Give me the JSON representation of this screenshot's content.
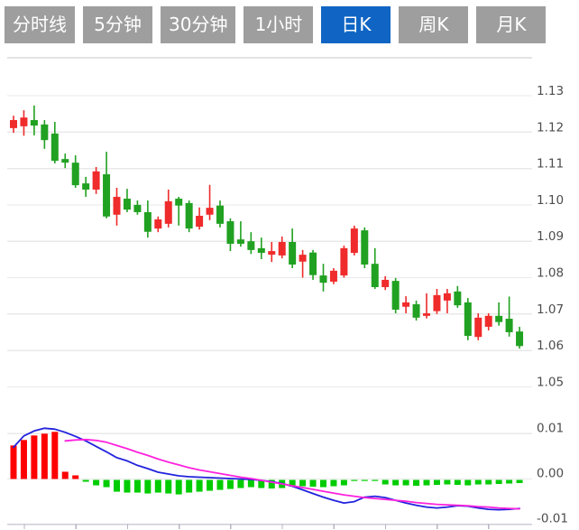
{
  "tabbar": {
    "tabs": [
      {
        "label": "分时线",
        "active": false
      },
      {
        "label": "5分钟",
        "active": false
      },
      {
        "label": "30分钟",
        "active": false
      },
      {
        "label": "1小时",
        "active": false
      },
      {
        "label": "日K",
        "active": true
      },
      {
        "label": "周K",
        "active": false
      },
      {
        "label": "月K",
        "active": false
      }
    ],
    "active_tab": "日K"
  },
  "colors": {
    "tab_bg": "#9e9e9e",
    "tab_active_bg": "#1065c4",
    "tab_text": "#ffffff",
    "grid": "#e9e9e9",
    "top_border": "#e3e3e3",
    "axis_line": "#cdcdd8",
    "axis_tick": "#b5b5c5",
    "axis_text": "#4d4d4d",
    "candle_up": "#ef2b2b",
    "candle_down": "#21a121",
    "hist_up": "#ff0000",
    "hist_down": "#00cc00",
    "dif_line": "#2222dd",
    "dea_line": "#ff22dd"
  },
  "chart_data": {
    "type": "candlestick",
    "title": "",
    "xlabel": "",
    "ylabel": "",
    "convention": "CN colors: red = up candle, green = down candle",
    "price_panel": {
      "y_ticks": [
        1.13,
        1.12,
        1.11,
        1.1,
        1.09,
        1.08,
        1.07,
        1.06,
        1.05
      ],
      "ylim": [
        1.045,
        1.141
      ],
      "grid": "horizontal-only",
      "legend": "none",
      "ohlc_order": [
        "open",
        "high",
        "low",
        "close"
      ],
      "candles": [
        [
          1.1211,
          1.1245,
          1.1198,
          1.1233
        ],
        [
          1.1216,
          1.126,
          1.119,
          1.124
        ],
        [
          1.1233,
          1.1273,
          1.1191,
          1.1218
        ],
        [
          1.1221,
          1.1233,
          1.1154,
          1.1178
        ],
        [
          1.1196,
          1.1228,
          1.1114,
          1.1121
        ],
        [
          1.1126,
          1.1141,
          1.1101,
          1.1116
        ],
        [
          1.1116,
          1.1136,
          1.1047,
          1.1054
        ],
        [
          1.1059,
          1.1077,
          1.1022,
          1.1042
        ],
        [
          1.1042,
          1.1104,
          1.103,
          1.1092
        ],
        [
          1.1084,
          1.1146,
          1.0963,
          1.0968
        ],
        [
          1.0973,
          1.1047,
          1.0943,
          1.1022
        ],
        [
          1.1017,
          1.1044,
          1.098,
          1.0987
        ],
        [
          1.1,
          1.1012,
          1.0973,
          1.098
        ],
        [
          1.098,
          1.1012,
          1.091,
          1.0926
        ],
        [
          1.0935,
          1.0968,
          1.0925,
          1.096
        ],
        [
          1.0948,
          1.1042,
          1.0938,
          1.101
        ],
        [
          1.1017,
          1.1022,
          1.0943,
          1.0998
        ],
        [
          1.1005,
          1.1012,
          1.0925,
          1.0935
        ],
        [
          1.094,
          1.0993,
          1.0932,
          1.097
        ],
        [
          1.0973,
          1.1055,
          1.0958,
          1.0992
        ],
        [
          1.0998,
          1.1012,
          1.0938,
          1.0948
        ],
        [
          1.0955,
          1.0963,
          1.0873,
          1.0893
        ],
        [
          1.0905,
          1.0955,
          1.0885,
          1.0893
        ],
        [
          1.09,
          1.0925,
          1.0865,
          1.0876
        ],
        [
          1.0881,
          1.091,
          1.0851,
          1.0868
        ],
        [
          1.0863,
          1.0898,
          1.0843,
          1.0873
        ],
        [
          1.0861,
          1.0913,
          1.0853,
          1.0898
        ],
        [
          1.0898,
          1.0935,
          1.0826,
          1.0836
        ],
        [
          1.0844,
          1.0876,
          1.08,
          1.0863
        ],
        [
          1.0869,
          1.0876,
          1.0794,
          1.0807
        ],
        [
          1.0806,
          1.0838,
          1.0762,
          1.0786
        ],
        [
          1.0789,
          1.0826,
          1.0782,
          1.0819
        ],
        [
          1.0806,
          1.0888,
          1.08,
          1.0881
        ],
        [
          1.0868,
          1.0943,
          1.0861,
          1.0935
        ],
        [
          1.093,
          1.0938,
          1.0826,
          1.0836
        ],
        [
          1.0838,
          1.0881,
          1.0769,
          1.0774
        ],
        [
          1.0774,
          1.0804,
          1.0766,
          1.0794
        ],
        [
          1.0791,
          1.0799,
          1.0702,
          1.0712
        ],
        [
          1.072,
          1.0749,
          1.0702,
          1.0732
        ],
        [
          1.0727,
          1.0737,
          1.0682,
          1.069
        ],
        [
          1.0695,
          1.0757,
          1.0688,
          1.0702
        ],
        [
          1.0708,
          1.0769,
          1.07,
          1.0752
        ],
        [
          1.0737,
          1.0769,
          1.0702,
          1.0757
        ],
        [
          1.0762,
          1.0777,
          1.0717,
          1.0724
        ],
        [
          1.0732,
          1.0744,
          1.0628,
          1.064
        ],
        [
          1.0637,
          1.0702,
          1.0628,
          1.069
        ],
        [
          1.0665,
          1.0702,
          1.0655,
          1.0695
        ],
        [
          1.0695,
          1.0732,
          1.0668,
          1.0678
        ],
        [
          1.0687,
          1.0748,
          1.0638,
          1.065
        ],
        [
          1.0652,
          1.0665,
          1.0605,
          1.0612
        ]
      ]
    },
    "macd_panel": {
      "y_ticks": [
        0.01,
        0.0,
        -0.01
      ],
      "ylim": [
        -0.012,
        0.013
      ],
      "histogram": [
        0.0074,
        0.0086,
        0.0096,
        0.01,
        0.0104,
        0.0016,
        0.0008,
        -0.0006,
        -0.0014,
        -0.0018,
        -0.0028,
        -0.003,
        -0.003,
        -0.0032,
        -0.003,
        -0.0032,
        -0.0034,
        -0.003,
        -0.0028,
        -0.0026,
        -0.0024,
        -0.0022,
        -0.002,
        -0.0018,
        -0.002,
        -0.0021,
        -0.002,
        -0.0017,
        -0.0016,
        -0.0017,
        -0.0018,
        -0.0016,
        -0.0014,
        -0.0004,
        -0.0002,
        -0.0003,
        -0.0012,
        -0.0014,
        -0.0014,
        -0.0015,
        -0.0014,
        -0.0013,
        -0.0012,
        -0.0013,
        -0.0014,
        -0.0012,
        -0.0012,
        -0.0011,
        -0.001,
        -0.0009
      ],
      "dif": [
        0.007,
        0.0095,
        0.0106,
        0.0112,
        0.011,
        0.0103,
        0.0094,
        0.0084,
        0.0072,
        0.006,
        0.0047,
        0.004,
        0.003,
        0.0023,
        0.0015,
        0.0011,
        0.0007,
        0.0005,
        0.0004,
        0.0003,
        0.0002,
        0.0001,
        0.0,
        -0.0001,
        -0.0003,
        -0.0006,
        -0.001,
        -0.0016,
        -0.0024,
        -0.0032,
        -0.004,
        -0.0047,
        -0.0053,
        -0.005,
        -0.004,
        -0.0038,
        -0.0041,
        -0.0047,
        -0.0053,
        -0.0058,
        -0.0062,
        -0.0064,
        -0.0062,
        -0.0059,
        -0.006,
        -0.0064,
        -0.0067,
        -0.0068,
        -0.0067,
        -0.0065
      ],
      "dea": [
        null,
        null,
        null,
        null,
        null,
        0.0084,
        0.0086,
        0.0087,
        0.0085,
        0.0081,
        0.0074,
        0.0067,
        0.0059,
        0.0052,
        0.0044,
        0.0037,
        0.0031,
        0.0025,
        0.002,
        0.0016,
        0.0012,
        0.0008,
        0.0004,
        0.0001,
        -0.0003,
        -0.0007,
        -0.0011,
        -0.0015,
        -0.0019,
        -0.0023,
        -0.0027,
        -0.0031,
        -0.0035,
        -0.0038,
        -0.0041,
        -0.0043,
        -0.0045,
        -0.0047,
        -0.0049,
        -0.0052,
        -0.0054,
        -0.0056,
        -0.0057,
        -0.0058,
        -0.0059,
        -0.0061,
        -0.0062,
        -0.0064,
        -0.0065,
        -0.0066
      ]
    },
    "x_axis": {
      "tick_count": 10,
      "labels": []
    }
  }
}
